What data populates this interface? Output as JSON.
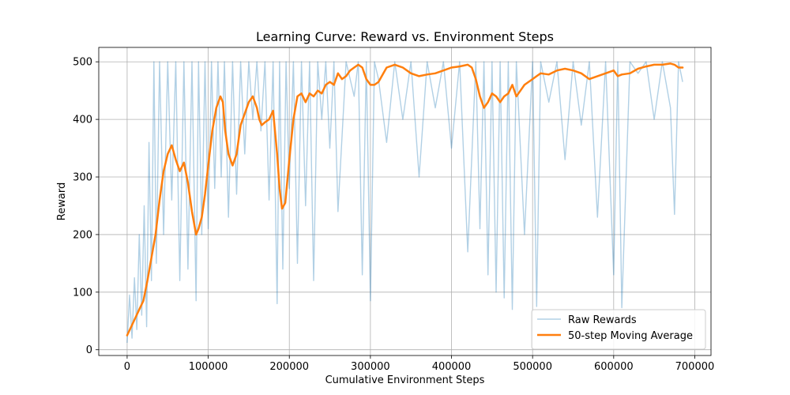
{
  "chart_data": {
    "type": "line",
    "title": "Learning Curve: Reward vs. Environment Steps",
    "xlabel": "Cumulative Environment Steps",
    "ylabel": "Reward",
    "xlim": [
      -35000,
      720000
    ],
    "ylim": [
      -10,
      525
    ],
    "xticks": [
      0,
      100000,
      200000,
      300000,
      400000,
      500000,
      600000,
      700000
    ],
    "xtick_labels": [
      "0",
      "100000",
      "200000",
      "300000",
      "400000",
      "500000",
      "600000",
      "700000"
    ],
    "yticks": [
      0,
      100,
      200,
      300,
      400,
      500
    ],
    "ytick_labels": [
      "0",
      "100",
      "200",
      "300",
      "400",
      "500"
    ],
    "grid": true,
    "legend_position": "bottom-right",
    "colors": {
      "raw": "#1f77b4",
      "moving_average": "#ff7f0e"
    },
    "series": [
      {
        "name": "Raw Rewards",
        "style": "thin translucent line",
        "x": [
          0,
          3000,
          6000,
          9000,
          12000,
          15000,
          18000,
          21000,
          24000,
          27000,
          30000,
          33000,
          36000,
          40000,
          45000,
          50000,
          55000,
          60000,
          65000,
          70000,
          75000,
          80000,
          85000,
          88000,
          92000,
          96000,
          100000,
          104000,
          108000,
          112000,
          116000,
          120000,
          125000,
          130000,
          135000,
          140000,
          145000,
          150000,
          155000,
          160000,
          165000,
          170000,
          175000,
          180000,
          185000,
          188000,
          192000,
          196000,
          200000,
          205000,
          210000,
          215000,
          220000,
          225000,
          230000,
          235000,
          240000,
          245000,
          250000,
          255000,
          260000,
          270000,
          280000,
          285000,
          290000,
          295000,
          300000,
          305000,
          310000,
          320000,
          330000,
          340000,
          350000,
          360000,
          370000,
          380000,
          390000,
          400000,
          410000,
          420000,
          430000,
          435000,
          440000,
          445000,
          450000,
          455000,
          460000,
          465000,
          470000,
          475000,
          480000,
          490000,
          500000,
          505000,
          510000,
          520000,
          530000,
          540000,
          550000,
          560000,
          570000,
          580000,
          590000,
          600000,
          605000,
          610000,
          620000,
          630000,
          640000,
          650000,
          660000,
          670000,
          675000,
          680000,
          685000
        ],
        "values": [
          12,
          95,
          20,
          125,
          35,
          200,
          60,
          250,
          40,
          360,
          120,
          500,
          150,
          500,
          200,
          500,
          260,
          500,
          120,
          500,
          140,
          500,
          85,
          500,
          200,
          500,
          210,
          500,
          280,
          500,
          300,
          500,
          230,
          500,
          270,
          500,
          340,
          500,
          400,
          500,
          380,
          500,
          260,
          500,
          80,
          500,
          140,
          500,
          280,
          500,
          150,
          500,
          250,
          500,
          120,
          500,
          400,
          500,
          350,
          500,
          240,
          500,
          440,
          500,
          130,
          500,
          85,
          500,
          470,
          360,
          500,
          400,
          500,
          300,
          500,
          420,
          500,
          350,
          500,
          170,
          500,
          210,
          500,
          130,
          500,
          100,
          500,
          90,
          500,
          70,
          500,
          200,
          500,
          75,
          500,
          430,
          500,
          330,
          500,
          390,
          500,
          230,
          500,
          130,
          500,
          73,
          500,
          480,
          500,
          400,
          500,
          420,
          235,
          500,
          465
        ]
      },
      {
        "name": "50-step Moving Average",
        "style": "thick line",
        "x": [
          0,
          5000,
          10000,
          15000,
          20000,
          25000,
          30000,
          35000,
          40000,
          45000,
          50000,
          55000,
          60000,
          65000,
          70000,
          75000,
          80000,
          85000,
          88000,
          92000,
          96000,
          100000,
          105000,
          110000,
          115000,
          118000,
          121000,
          125000,
          130000,
          135000,
          140000,
          145000,
          150000,
          155000,
          160000,
          163000,
          166000,
          170000,
          175000,
          180000,
          185000,
          188000,
          191000,
          195000,
          200000,
          205000,
          210000,
          215000,
          220000,
          225000,
          230000,
          235000,
          240000,
          245000,
          250000,
          255000,
          260000,
          265000,
          270000,
          275000,
          280000,
          285000,
          290000,
          295000,
          300000,
          305000,
          310000,
          320000,
          330000,
          340000,
          350000,
          360000,
          370000,
          380000,
          390000,
          400000,
          410000,
          420000,
          425000,
          430000,
          435000,
          440000,
          445000,
          450000,
          455000,
          460000,
          465000,
          470000,
          475000,
          480000,
          485000,
          490000,
          495000,
          500000,
          505000,
          510000,
          520000,
          530000,
          540000,
          550000,
          560000,
          570000,
          580000,
          590000,
          600000,
          605000,
          610000,
          620000,
          630000,
          640000,
          650000,
          660000,
          670000,
          675000,
          680000,
          685000
        ],
        "values": [
          25,
          40,
          55,
          70,
          85,
          120,
          160,
          200,
          260,
          310,
          340,
          355,
          330,
          310,
          325,
          290,
          240,
          200,
          210,
          230,
          270,
          320,
          380,
          420,
          440,
          430,
          380,
          340,
          320,
          340,
          390,
          410,
          430,
          440,
          420,
          400,
          390,
          395,
          400,
          415,
          340,
          280,
          245,
          255,
          330,
          400,
          440,
          445,
          430,
          445,
          440,
          450,
          445,
          460,
          465,
          460,
          480,
          470,
          475,
          485,
          490,
          495,
          490,
          470,
          460,
          460,
          465,
          490,
          495,
          490,
          480,
          475,
          478,
          480,
          485,
          490,
          492,
          495,
          490,
          470,
          440,
          420,
          430,
          445,
          440,
          430,
          440,
          445,
          460,
          440,
          450,
          460,
          465,
          470,
          475,
          480,
          478,
          485,
          488,
          485,
          480,
          470,
          475,
          480,
          485,
          475,
          478,
          480,
          488,
          492,
          495,
          495,
          497,
          495,
          490,
          490
        ]
      }
    ]
  }
}
